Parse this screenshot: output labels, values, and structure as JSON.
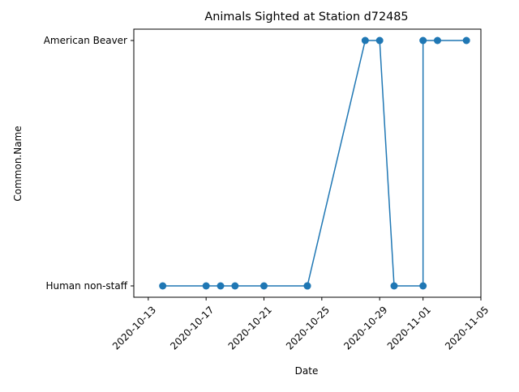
{
  "chart_data": {
    "type": "line",
    "title": "Animals Sighted at Station d72485",
    "xlabel": "Date",
    "ylabel": "Common.Name",
    "x_tick_labels": [
      "2020-10-13",
      "2020-10-17",
      "2020-10-21",
      "2020-10-25",
      "2020-10-29",
      "2020-11-01",
      "2020-11-05"
    ],
    "x_tick_dates": [
      "2020-10-13",
      "2020-10-17",
      "2020-10-21",
      "2020-10-25",
      "2020-10-29",
      "2020-11-01",
      "2020-11-05"
    ],
    "y_categories": [
      "Human non-staff",
      "American Beaver"
    ],
    "xlim": [
      "2020-10-12",
      "2020-11-05"
    ],
    "grid": false,
    "series": [
      {
        "color": "#1f77b4",
        "marker": "circle",
        "points": [
          {
            "x": "2020-10-14",
            "y": "Human non-staff"
          },
          {
            "x": "2020-10-17",
            "y": "Human non-staff"
          },
          {
            "x": "2020-10-18",
            "y": "Human non-staff"
          },
          {
            "x": "2020-10-19",
            "y": "Human non-staff"
          },
          {
            "x": "2020-10-21",
            "y": "Human non-staff"
          },
          {
            "x": "2020-10-24",
            "y": "Human non-staff"
          },
          {
            "x": "2020-10-24",
            "y": "Human non-staff"
          },
          {
            "x": "2020-10-28",
            "y": "American Beaver"
          },
          {
            "x": "2020-10-29",
            "y": "American Beaver"
          },
          {
            "x": "2020-10-30",
            "y": "Human non-staff"
          },
          {
            "x": "2020-11-01",
            "y": "Human non-staff"
          },
          {
            "x": "2020-11-01",
            "y": "American Beaver"
          },
          {
            "x": "2020-11-02",
            "y": "American Beaver"
          },
          {
            "x": "2020-11-04",
            "y": "American Beaver"
          }
        ]
      }
    ]
  }
}
